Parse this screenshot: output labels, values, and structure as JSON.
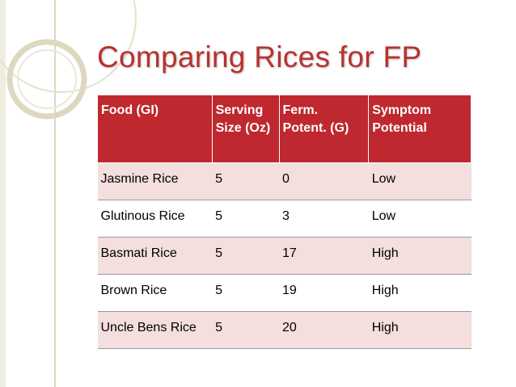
{
  "slide": {
    "title": "Comparing Rices for FP"
  },
  "theme": {
    "accent": "#c0282f",
    "title_color": "#b8312f",
    "row_tint": "#f4dede",
    "decoration_color": "#ddd8c0"
  },
  "table": {
    "headers": [
      "Food (GI)",
      "Serving Size (Oz)",
      "Ferm. Potent. (G)",
      "Symptom Potential"
    ],
    "rows": [
      [
        "Jasmine Rice",
        "5",
        "0",
        "Low"
      ],
      [
        "Glutinous Rice",
        "5",
        "3",
        "Low"
      ],
      [
        "Basmati Rice",
        "5",
        "17",
        "High"
      ],
      [
        "Brown Rice",
        "5",
        "19",
        "High"
      ],
      [
        "Uncle Bens Rice",
        "5",
        "20",
        "High"
      ]
    ]
  }
}
